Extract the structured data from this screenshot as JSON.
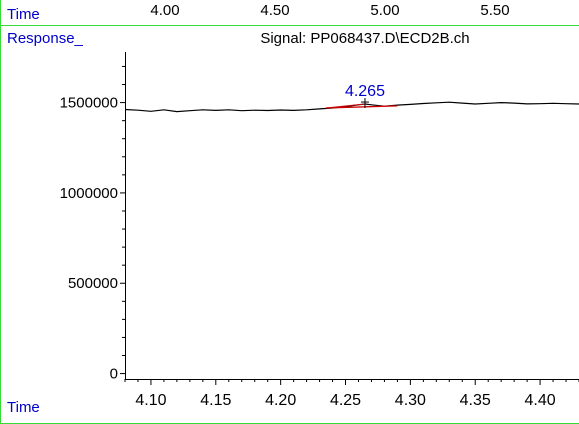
{
  "chart_data": {
    "type": "line",
    "title": "Signal: PP068437.D\\ECD2B.ch",
    "ylabel": "Response_",
    "xlabel": "Time",
    "top_axis": {
      "label": "Time",
      "ticks": [
        "4.00",
        "4.50",
        "5.00",
        "5.50"
      ]
    },
    "xlim": [
      4.08,
      4.43
    ],
    "ylim": [
      -30000,
      1780000
    ],
    "x_ticks": [
      "4.10",
      "4.15",
      "4.20",
      "4.25",
      "4.30",
      "4.35",
      "4.40"
    ],
    "y_ticks": [
      "0",
      "500000",
      "1000000",
      "1500000"
    ],
    "series": [
      {
        "color": "#000000",
        "x": [
          4.08,
          4.09,
          4.1,
          4.11,
          4.12,
          4.13,
          4.14,
          4.15,
          4.16,
          4.17,
          4.18,
          4.19,
          4.2,
          4.21,
          4.22,
          4.23,
          4.24,
          4.25,
          4.26,
          4.265,
          4.27,
          4.28,
          4.29,
          4.3,
          4.31,
          4.32,
          4.33,
          4.34,
          4.35,
          4.36,
          4.37,
          4.38,
          4.39,
          4.4,
          4.41,
          4.42,
          4.43
        ],
        "values": [
          1462000,
          1458000,
          1452000,
          1460000,
          1450000,
          1455000,
          1460000,
          1457000,
          1460000,
          1455000,
          1458000,
          1456000,
          1459000,
          1457000,
          1460000,
          1465000,
          1470000,
          1478000,
          1488000,
          1492000,
          1488000,
          1480000,
          1486000,
          1490000,
          1495000,
          1499000,
          1502000,
          1497000,
          1492000,
          1496000,
          1500000,
          1497000,
          1493000,
          1494000,
          1496000,
          1494000,
          1492000
        ]
      }
    ],
    "peak": {
      "label": "4.265",
      "x": 4.265,
      "y": 1492000,
      "baseline_start": [
        4.235,
        1470000
      ],
      "baseline_end": [
        4.29,
        1482000
      ],
      "label_color": "#0000cc",
      "baseline_color": "#cc0000"
    },
    "frame_color": "#33dd33",
    "grid": false,
    "legend": "none"
  }
}
